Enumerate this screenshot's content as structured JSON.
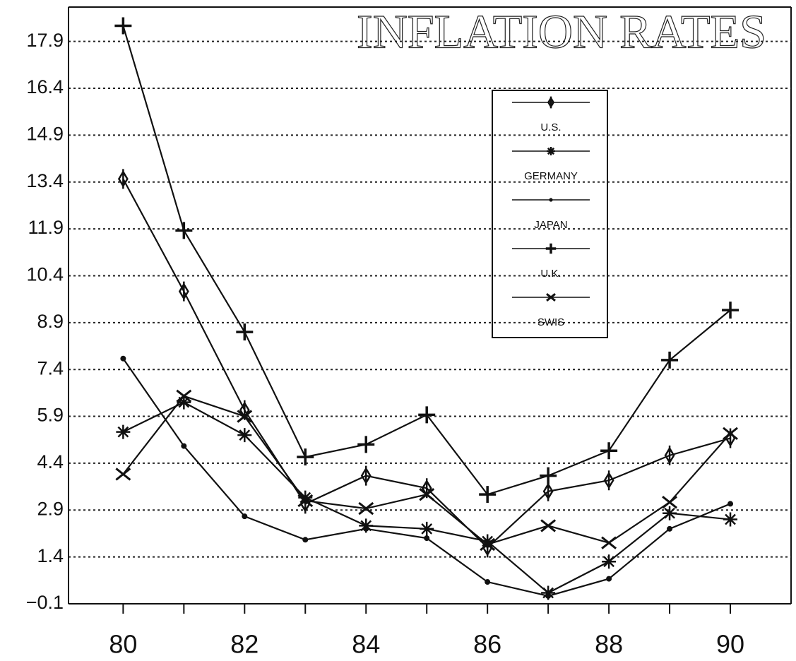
{
  "chart_data": {
    "type": "line",
    "title": "INFLATION RATES",
    "x": [
      80,
      81,
      82,
      83,
      84,
      85,
      86,
      87,
      88,
      89,
      90
    ],
    "series": [
      {
        "name": "U.S.",
        "color": "#111111",
        "marker": "diamond",
        "values": [
          13.5,
          9.9,
          6.1,
          3.1,
          4.0,
          3.6,
          1.7,
          3.5,
          3.85,
          4.65,
          5.2
        ]
      },
      {
        "name": "GERMANY",
        "color": "#111111",
        "marker": "asterisk",
        "values": [
          5.4,
          6.35,
          5.3,
          3.3,
          2.4,
          2.3,
          1.9,
          0.25,
          1.25,
          2.8,
          2.6
        ]
      },
      {
        "name": "JAPAN",
        "color": "#111111",
        "marker": "dot",
        "values": [
          7.75,
          4.95,
          2.7,
          1.95,
          2.3,
          2.0,
          0.6,
          0.15,
          0.7,
          2.3,
          3.1
        ]
      },
      {
        "name": "U.K.",
        "color": "#111111",
        "marker": "plus",
        "values": [
          18.4,
          11.85,
          8.6,
          4.6,
          5.0,
          5.95,
          3.4,
          4.0,
          4.8,
          7.7,
          9.3
        ]
      },
      {
        "name": "SWIS",
        "color": "#111111",
        "marker": "cross",
        "values": [
          4.05,
          6.55,
          5.9,
          3.2,
          2.95,
          3.4,
          1.8,
          2.4,
          1.85,
          3.15,
          5.35
        ]
      }
    ],
    "xlim": [
      79.1,
      91.0
    ],
    "xticks": [
      80,
      82,
      84,
      86,
      88,
      90
    ],
    "xminorticks": [
      81,
      83,
      85,
      87,
      89
    ],
    "ylim": [
      -0.1,
      19.0
    ],
    "yticks": [
      {
        "value": -0.1,
        "label": "−0.1"
      },
      1.4,
      2.9,
      4.4,
      5.9,
      7.4,
      8.9,
      10.4,
      11.9,
      13.4,
      14.9,
      16.4,
      17.9
    ],
    "grid": true
  }
}
